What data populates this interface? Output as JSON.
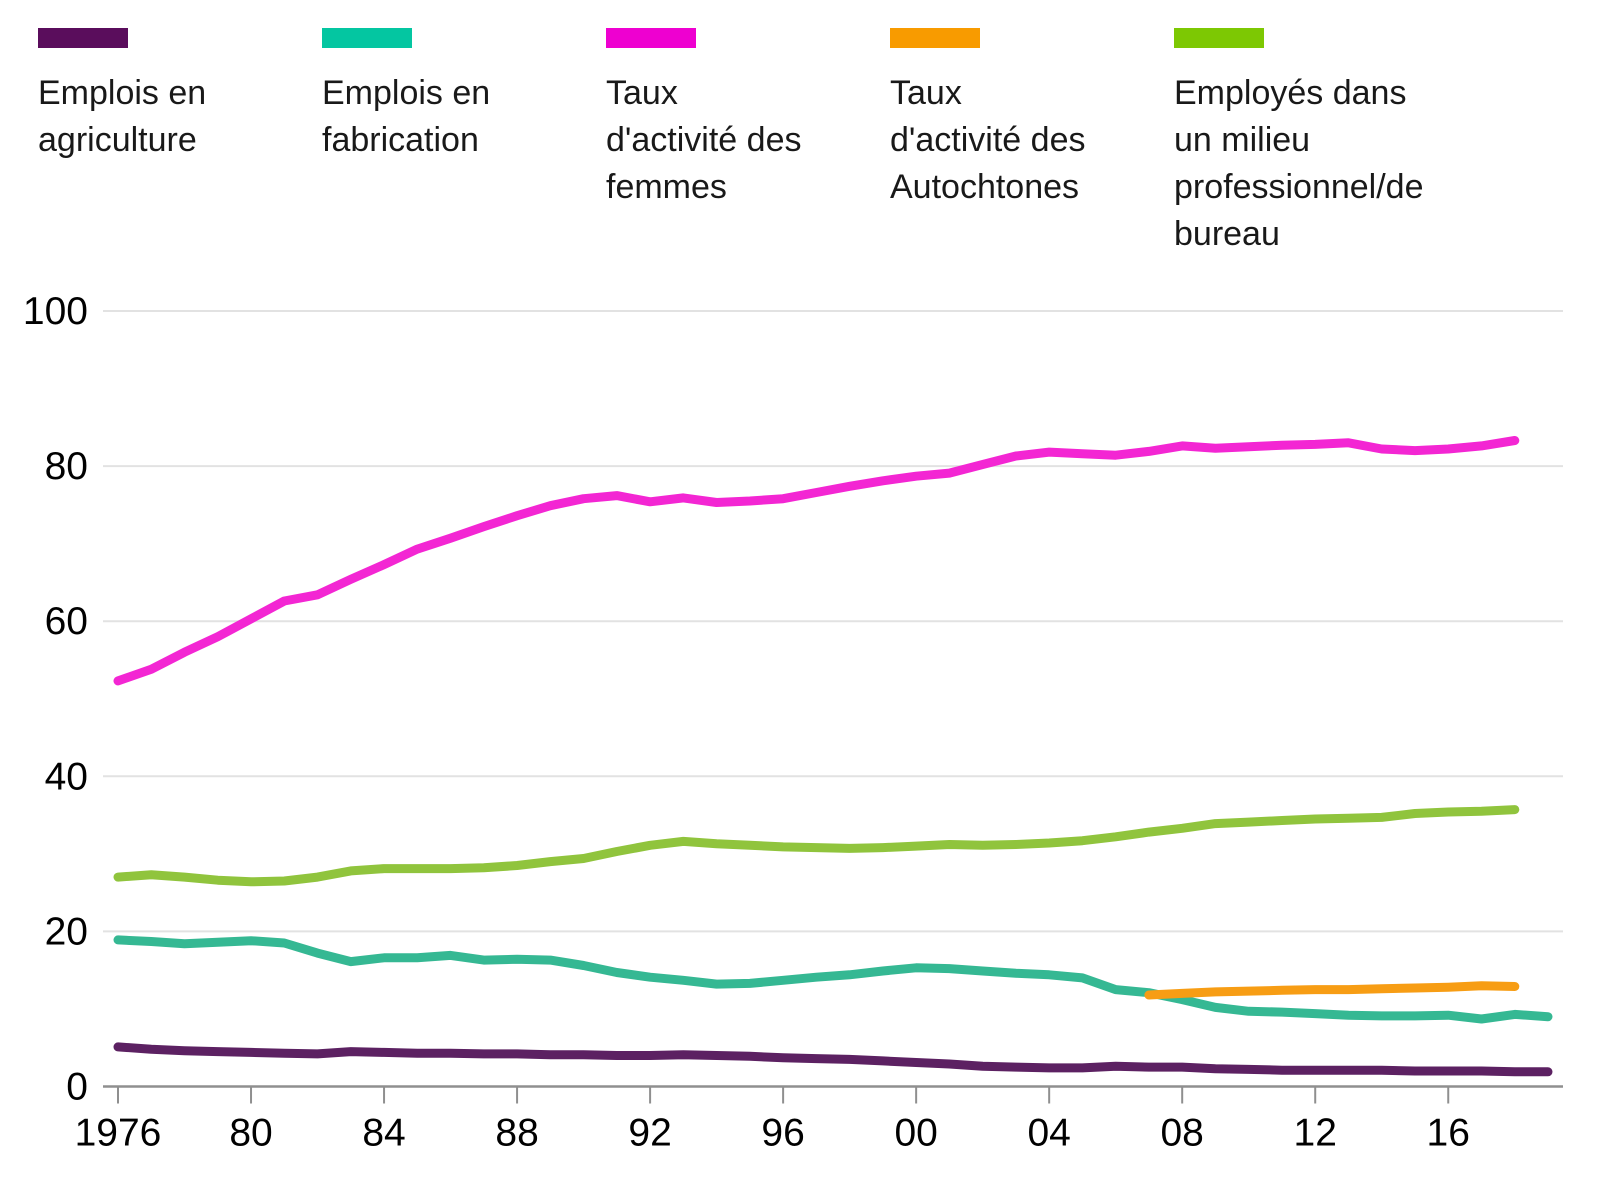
{
  "legend": {
    "items": [
      {
        "label_lines": [
          "Emplois en",
          "agriculture"
        ]
      },
      {
        "label_lines": [
          "Emplois en",
          "fabrication"
        ]
      },
      {
        "label_lines": [
          "Taux",
          "d'activité des",
          "femmes"
        ]
      },
      {
        "label_lines": [
          "Taux",
          "d'activité des",
          "Autochtones"
        ]
      },
      {
        "label_lines": [
          "Employés dans",
          "un milieu",
          "professionnel/de",
          "bureau"
        ]
      }
    ]
  },
  "chart_data": {
    "type": "line",
    "title": "",
    "xlabel": "",
    "ylabel": "",
    "ylim": [
      0,
      100
    ],
    "xlim": [
      1975.5,
      2019.5
    ],
    "grid": "horizontal",
    "legend_position": "top",
    "y_ticks": [
      0,
      20,
      40,
      60,
      80,
      100
    ],
    "x_ticks": [
      {
        "label": "1976",
        "year": 1976
      },
      {
        "label": "80",
        "year": 1980
      },
      {
        "label": "84",
        "year": 1984
      },
      {
        "label": "88",
        "year": 1988
      },
      {
        "label": "92",
        "year": 1992
      },
      {
        "label": "96",
        "year": 1996
      },
      {
        "label": "00",
        "year": 2000
      },
      {
        "label": "04",
        "year": 2004
      },
      {
        "label": "08",
        "year": 2008
      },
      {
        "label": "12",
        "year": 2012
      },
      {
        "label": "16",
        "year": 2016
      }
    ],
    "series": [
      {
        "name": "Emplois en agriculture",
        "swatch_color": "#5a0d5c",
        "line_color": "#5c2162",
        "start_year": 1976,
        "values": [
          5.1,
          4.8,
          4.6,
          4.5,
          4.4,
          4.3,
          4.2,
          4.5,
          4.4,
          4.3,
          4.3,
          4.2,
          4.2,
          4.1,
          4.1,
          4.0,
          4.0,
          4.1,
          4.0,
          3.9,
          3.7,
          3.6,
          3.5,
          3.3,
          3.1,
          2.9,
          2.6,
          2.5,
          2.4,
          2.4,
          2.6,
          2.5,
          2.5,
          2.3,
          2.2,
          2.1,
          2.1,
          2.1,
          2.1,
          2.0,
          2.0,
          2.0,
          1.9,
          1.9
        ]
      },
      {
        "name": "Emplois en fabrication",
        "swatch_color": "#04c6a1",
        "line_color": "#35b893",
        "start_year": 1976,
        "values": [
          18.9,
          18.7,
          18.4,
          18.6,
          18.8,
          18.5,
          17.2,
          16.1,
          16.6,
          16.6,
          16.9,
          16.3,
          16.4,
          16.3,
          15.6,
          14.7,
          14.1,
          13.7,
          13.2,
          13.3,
          13.7,
          14.1,
          14.4,
          14.9,
          15.3,
          15.2,
          14.9,
          14.6,
          14.4,
          14.0,
          12.5,
          12.1,
          11.2,
          10.2,
          9.7,
          9.6,
          9.4,
          9.2,
          9.1,
          9.1,
          9.2,
          8.7,
          9.3,
          9.0
        ]
      },
      {
        "name": "Taux d'activité des femmes",
        "swatch_color": "#ee00d0",
        "line_color": "#f326d3",
        "start_year": 1976,
        "values": [
          52.3,
          53.8,
          56.0,
          58.0,
          60.3,
          62.6,
          63.4,
          65.4,
          67.3,
          69.3,
          70.7,
          72.2,
          73.6,
          74.9,
          75.8,
          76.2,
          75.4,
          75.9,
          75.3,
          75.5,
          75.8,
          76.6,
          77.4,
          78.1,
          78.7,
          79.1,
          80.2,
          81.3,
          81.8,
          81.6,
          81.4,
          81.9,
          82.6,
          82.3,
          82.5,
          82.7,
          82.8,
          83.0,
          82.2,
          82.0,
          82.2,
          82.6,
          83.3
        ]
      },
      {
        "name": "Taux d'activité des Autochtones",
        "swatch_color": "#f89b00",
        "line_color": "#f79d14",
        "start_year": 2007,
        "values": [
          11.8,
          12.0,
          12.2,
          12.3,
          12.4,
          12.5,
          12.5,
          12.6,
          12.7,
          12.8,
          13.0,
          12.9
        ]
      },
      {
        "name": "Employés dans un milieu professionnel/de bureau",
        "swatch_color": "#7dc803",
        "line_color": "#90c43d",
        "start_year": 1976,
        "values": [
          27.0,
          27.3,
          27.0,
          26.6,
          26.4,
          26.5,
          27.0,
          27.8,
          28.1,
          28.1,
          28.1,
          28.2,
          28.5,
          29.0,
          29.4,
          30.3,
          31.1,
          31.6,
          31.3,
          31.1,
          30.9,
          30.8,
          30.7,
          30.8,
          31.0,
          31.2,
          31.1,
          31.2,
          31.4,
          31.7,
          32.2,
          32.8,
          33.3,
          33.9,
          34.1,
          34.3,
          34.5,
          34.6,
          34.7,
          35.2,
          35.4,
          35.5,
          35.7
        ]
      }
    ],
    "colors": {
      "grid": "#e2e2e2",
      "axis": "#8f8f8f",
      "tick_text": "#000000",
      "background": "#ffffff"
    }
  }
}
